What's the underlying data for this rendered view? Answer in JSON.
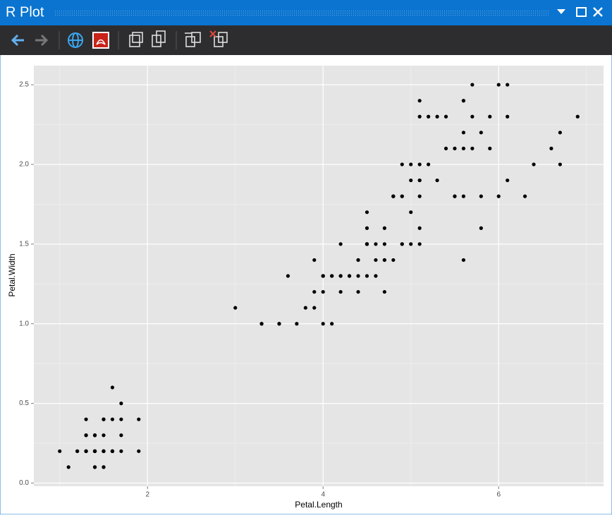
{
  "window": {
    "title": "R Plot"
  },
  "chart_data": {
    "type": "scatter",
    "xlabel": "Petal.Length",
    "ylabel": "Petal.Width",
    "x": [
      1.4,
      1.4,
      1.3,
      1.5,
      1.4,
      1.7,
      1.4,
      1.5,
      1.4,
      1.5,
      1.5,
      1.6,
      1.4,
      1.1,
      1.2,
      1.5,
      1.3,
      1.4,
      1.7,
      1.5,
      1.7,
      1.5,
      1.0,
      1.7,
      1.9,
      1.6,
      1.6,
      1.5,
      1.4,
      1.6,
      1.6,
      1.5,
      1.5,
      1.4,
      1.5,
      1.2,
      1.3,
      1.4,
      1.3,
      1.5,
      1.3,
      1.3,
      1.3,
      1.6,
      1.9,
      1.4,
      1.6,
      1.4,
      1.5,
      1.4,
      4.7,
      4.5,
      4.9,
      4.0,
      4.6,
      4.5,
      4.7,
      3.3,
      4.6,
      3.9,
      3.5,
      4.2,
      4.0,
      4.7,
      3.6,
      4.4,
      4.5,
      4.1,
      4.5,
      3.9,
      4.8,
      4.0,
      4.9,
      4.7,
      4.3,
      4.4,
      4.8,
      5.0,
      4.5,
      3.5,
      3.8,
      3.7,
      3.9,
      5.1,
      4.5,
      4.5,
      4.7,
      4.4,
      4.1,
      4.0,
      4.4,
      4.6,
      4.0,
      3.3,
      4.2,
      4.2,
      4.2,
      4.3,
      3.0,
      4.1,
      6.0,
      5.1,
      5.9,
      5.6,
      5.8,
      6.6,
      4.5,
      6.3,
      5.8,
      6.1,
      5.1,
      5.3,
      5.5,
      5.0,
      5.1,
      5.3,
      5.5,
      6.7,
      6.9,
      5.0,
      5.7,
      4.9,
      6.7,
      4.9,
      5.7,
      6.0,
      4.8,
      4.9,
      5.6,
      5.8,
      6.1,
      6.4,
      5.6,
      5.1,
      5.6,
      6.1,
      5.6,
      5.5,
      4.8,
      5.4,
      5.6,
      5.1,
      5.1,
      5.9,
      5.7,
      5.2,
      5.0,
      5.2,
      5.4,
      5.1
    ],
    "values": [
      0.2,
      0.2,
      0.2,
      0.2,
      0.2,
      0.4,
      0.3,
      0.2,
      0.2,
      0.1,
      0.2,
      0.2,
      0.1,
      0.1,
      0.2,
      0.4,
      0.4,
      0.3,
      0.3,
      0.3,
      0.2,
      0.4,
      0.2,
      0.5,
      0.2,
      0.2,
      0.4,
      0.2,
      0.2,
      0.2,
      0.2,
      0.4,
      0.1,
      0.2,
      0.2,
      0.2,
      0.2,
      0.1,
      0.2,
      0.2,
      0.3,
      0.3,
      0.2,
      0.6,
      0.4,
      0.3,
      0.2,
      0.2,
      0.2,
      0.2,
      1.4,
      1.5,
      1.5,
      1.3,
      1.5,
      1.3,
      1.6,
      1.0,
      1.3,
      1.4,
      1.0,
      1.5,
      1.0,
      1.4,
      1.3,
      1.4,
      1.5,
      1.0,
      1.5,
      1.1,
      1.8,
      1.3,
      1.5,
      1.2,
      1.3,
      1.4,
      1.4,
      1.7,
      1.5,
      1.0,
      1.1,
      1.0,
      1.2,
      1.6,
      1.5,
      1.6,
      1.5,
      1.3,
      1.3,
      1.3,
      1.2,
      1.4,
      1.2,
      1.0,
      1.3,
      1.2,
      1.3,
      1.3,
      1.1,
      1.3,
      2.5,
      1.9,
      2.1,
      1.8,
      2.2,
      2.1,
      1.7,
      1.8,
      1.8,
      2.5,
      2.0,
      1.9,
      2.1,
      2.0,
      2.4,
      2.3,
      1.8,
      2.2,
      2.3,
      1.5,
      2.3,
      2.0,
      2.0,
      1.8,
      2.1,
      1.8,
      1.8,
      1.8,
      2.1,
      1.6,
      1.9,
      2.0,
      2.2,
      1.5,
      1.4,
      2.3,
      2.4,
      1.8,
      1.8,
      2.1,
      2.4,
      2.3,
      1.9,
      2.3,
      2.5,
      2.3,
      1.9,
      2.0,
      2.3,
      1.8
    ],
    "color": "#000000",
    "xlim": [
      0.705,
      7.195
    ],
    "xticks": [
      2,
      4,
      6
    ],
    "ylim": [
      -0.02,
      2.62
    ],
    "yticks": [
      {
        "value": 0,
        "label": "0.0"
      },
      0.5,
      {
        "value": 1,
        "label": "1.0"
      },
      1.5,
      {
        "value": 2,
        "label": "2.0"
      },
      2.5
    ],
    "grid": true
  }
}
